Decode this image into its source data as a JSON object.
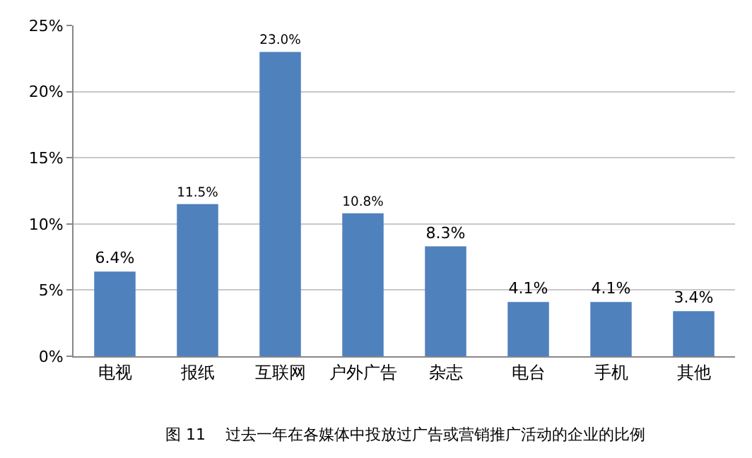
{
  "chart_data": {
    "type": "bar",
    "categories": [
      "电视",
      "报纸",
      "互联网",
      "户外广告",
      "杂志",
      "电台",
      "手机",
      "其他"
    ],
    "values": [
      6.4,
      11.5,
      23.0,
      10.8,
      8.3,
      4.1,
      4.1,
      3.4
    ],
    "value_labels": [
      "6.4%",
      "11.5%",
      "23.0%",
      "10.8%",
      "8.3%",
      "4.1%",
      "4.1%",
      "3.4%"
    ],
    "color": "#4f81bd",
    "ylim": [
      0,
      25
    ],
    "yticks": [
      {
        "value": 0,
        "label": "0%"
      },
      {
        "value": 5,
        "label": "5%"
      },
      {
        "value": 10,
        "label": "10%"
      },
      {
        "value": 15,
        "label": "15%"
      },
      {
        "value": 20,
        "label": "20%"
      },
      {
        "value": 25,
        "label": "25%"
      }
    ],
    "grid": "y",
    "annotations": [
      "图 11    过去一年在各媒体中投放过广告或营销推广活动的企业的比例"
    ]
  }
}
